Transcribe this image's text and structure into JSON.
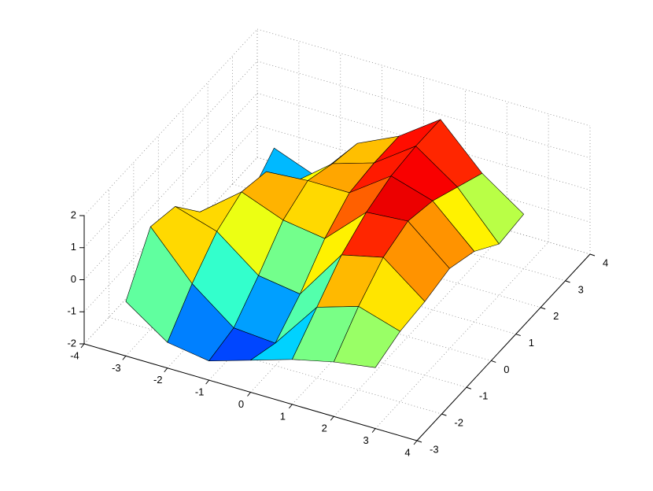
{
  "chart_data": {
    "type": "surface",
    "colormap": "jet",
    "grid": true,
    "x": [
      -3,
      -2,
      -1,
      0,
      1,
      2,
      3
    ],
    "y": [
      -3,
      -2,
      -1,
      0,
      1,
      2,
      3
    ],
    "z": [
      [
        -0.3,
        -1.2,
        -1.4,
        -1.0,
        -0.6,
        -0.3,
        -0.1
      ],
      [
        1.2,
        -0.2,
        -1.2,
        -1.3,
        0.2,
        0.6,
        0.2
      ],
      [
        1.0,
        0.6,
        -0.4,
        -0.6,
        1.0,
        1.3,
        0.3
      ],
      [
        0.0,
        1.0,
        0.5,
        0.3,
        1.5,
        1.6,
        0.5
      ],
      [
        -1.0,
        0.8,
        0.9,
        0.9,
        1.8,
        1.4,
        0.2
      ],
      [
        -1.2,
        -0.4,
        0.6,
        1.0,
        1.9,
        1.0,
        -0.4
      ],
      [
        -0.5,
        -1.0,
        0.4,
        1.0,
        1.9,
        0.6,
        -0.3
      ]
    ],
    "xlim": [
      -4,
      4
    ],
    "xticks": [
      -4,
      -3,
      -2,
      -1,
      0,
      1,
      2,
      3,
      4
    ],
    "ylim": [
      -3,
      4
    ],
    "yticks": [
      -3,
      -2,
      -1,
      0,
      1,
      2,
      3,
      4
    ],
    "zlim": [
      -2,
      2
    ],
    "zticks": [
      -2,
      -1,
      0,
      1,
      2
    ]
  }
}
